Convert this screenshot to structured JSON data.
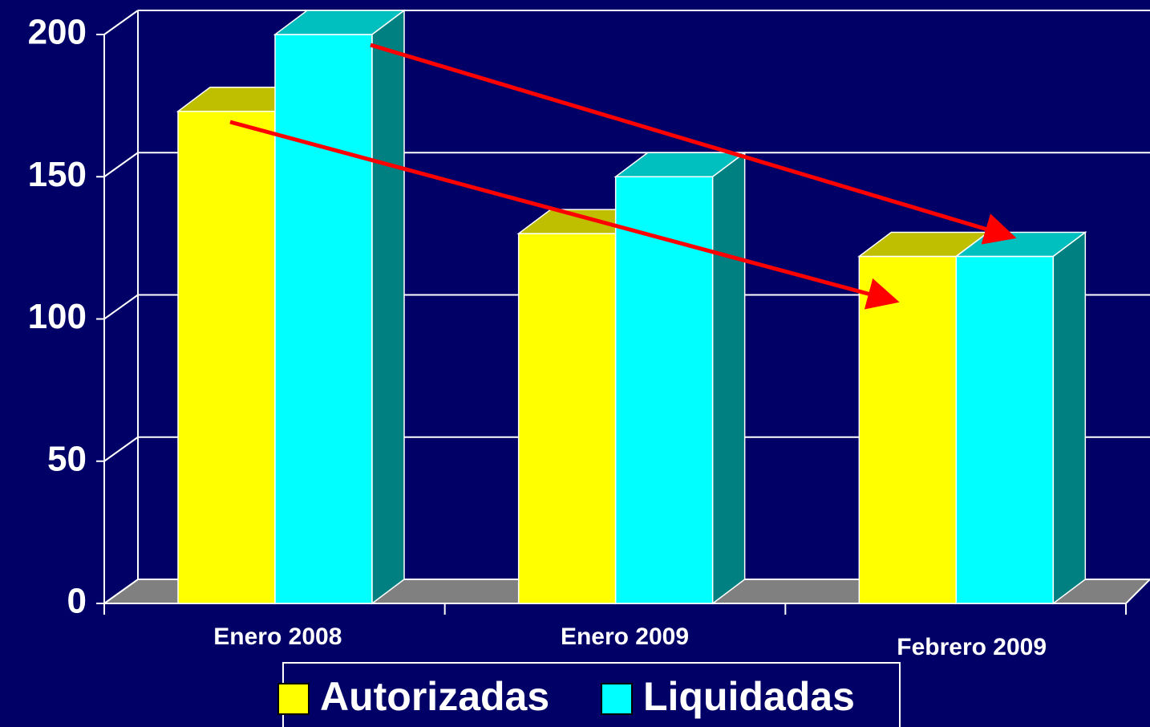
{
  "chart_data": {
    "type": "bar",
    "categories": [
      "Enero 2008",
      "Enero 2009",
      "Febrero 2009"
    ],
    "series": [
      {
        "name": "Autorizadas",
        "color": "#ffff00",
        "values": [
          173,
          130,
          122
        ]
      },
      {
        "name": "Liquidadas",
        "color": "#00ffff",
        "values": [
          200,
          150,
          122
        ]
      }
    ],
    "ylim": [
      0,
      200
    ],
    "yticks": [
      0,
      50,
      100,
      150,
      200
    ],
    "grid": true,
    "legend": "bottom"
  }
}
